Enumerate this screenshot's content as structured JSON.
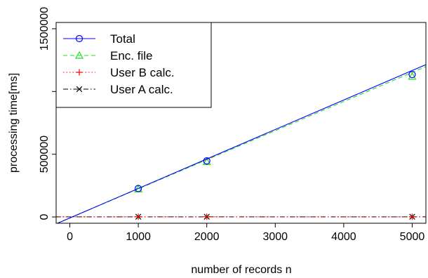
{
  "chart_data": {
    "type": "line",
    "xlabel": "number of records n",
    "ylabel": "processing time[ms]",
    "xlim": [
      -200,
      5200
    ],
    "ylim": [
      -50000,
      1550000
    ],
    "x_ticks": [
      0,
      1000,
      2000,
      3000,
      4000,
      5000
    ],
    "y_ticks": [
      0,
      500000,
      1000000,
      1500000
    ],
    "x_tick_labels": [
      "0",
      "1000",
      "2000",
      "3000",
      "4000",
      "5000"
    ],
    "y_tick_labels": [
      "0",
      "500000",
      "",
      "1500000"
    ],
    "legend_position": "top-left",
    "series": [
      {
        "name": "Total",
        "color": "#0000ff",
        "line": "solid",
        "marker": "circle",
        "fit": {
          "intercept": -8000,
          "slope": 235
        },
        "x": [
          1000,
          2000,
          5000
        ],
        "y": [
          227000,
          447000,
          1135000
        ]
      },
      {
        "name": "Enc. file",
        "color": "#22dd22",
        "line": "dashed",
        "marker": "triangle",
        "fit": {
          "intercept": -8000,
          "slope": 232
        },
        "x": [
          1000,
          2000,
          5000
        ],
        "y": [
          222000,
          440000,
          1120000
        ]
      },
      {
        "name": "User B calc.",
        "color": "#ff0000",
        "line": "dotted",
        "marker": "plus",
        "fit": {
          "intercept": 1000,
          "slope": 0
        },
        "x": [
          1000,
          2000,
          5000
        ],
        "y": [
          2000,
          2000,
          2000
        ]
      },
      {
        "name": "User A calc.",
        "color": "#000000",
        "line": "dashdot",
        "marker": "x",
        "fit": {
          "intercept": 1000,
          "slope": 0
        },
        "x": [
          1000,
          2000,
          5000
        ],
        "y": [
          2000,
          2000,
          2000
        ]
      }
    ]
  }
}
